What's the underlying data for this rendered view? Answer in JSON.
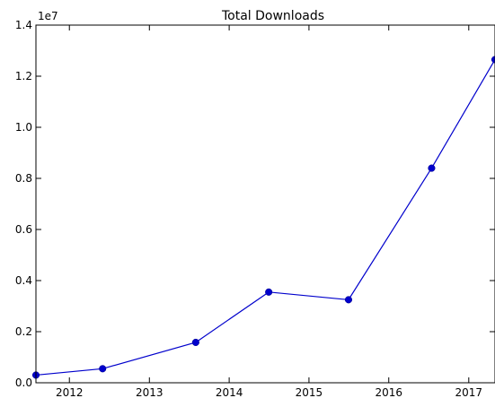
{
  "chart_data": {
    "type": "line",
    "title": "Total Downloads",
    "xlabel": "",
    "ylabel": "",
    "y_scale_label": "1e7",
    "x_ticks": [
      "2012",
      "2013",
      "2014",
      "2015",
      "2016",
      "2017"
    ],
    "y_ticks": [
      "0.0",
      "0.2",
      "0.4",
      "0.6",
      "0.8",
      "1.0",
      "1.2",
      "1.4"
    ],
    "xlim": [
      "2011-08-01",
      "2017-05-01"
    ],
    "ylim": [
      0,
      1.4
    ],
    "grid": false,
    "legend": "none",
    "series": [
      {
        "color": "#0000cc",
        "points": [
          {
            "x": "2011-08-01",
            "y": 0.03
          },
          {
            "x": "2012-06-01",
            "y": 0.055
          },
          {
            "x": "2013-08-01",
            "y": 0.158
          },
          {
            "x": "2014-07-01",
            "y": 0.355
          },
          {
            "x": "2015-07-01",
            "y": 0.325
          },
          {
            "x": "2016-07-15",
            "y": 0.84
          },
          {
            "x": "2017-05-01",
            "y": 1.265
          }
        ]
      }
    ]
  }
}
